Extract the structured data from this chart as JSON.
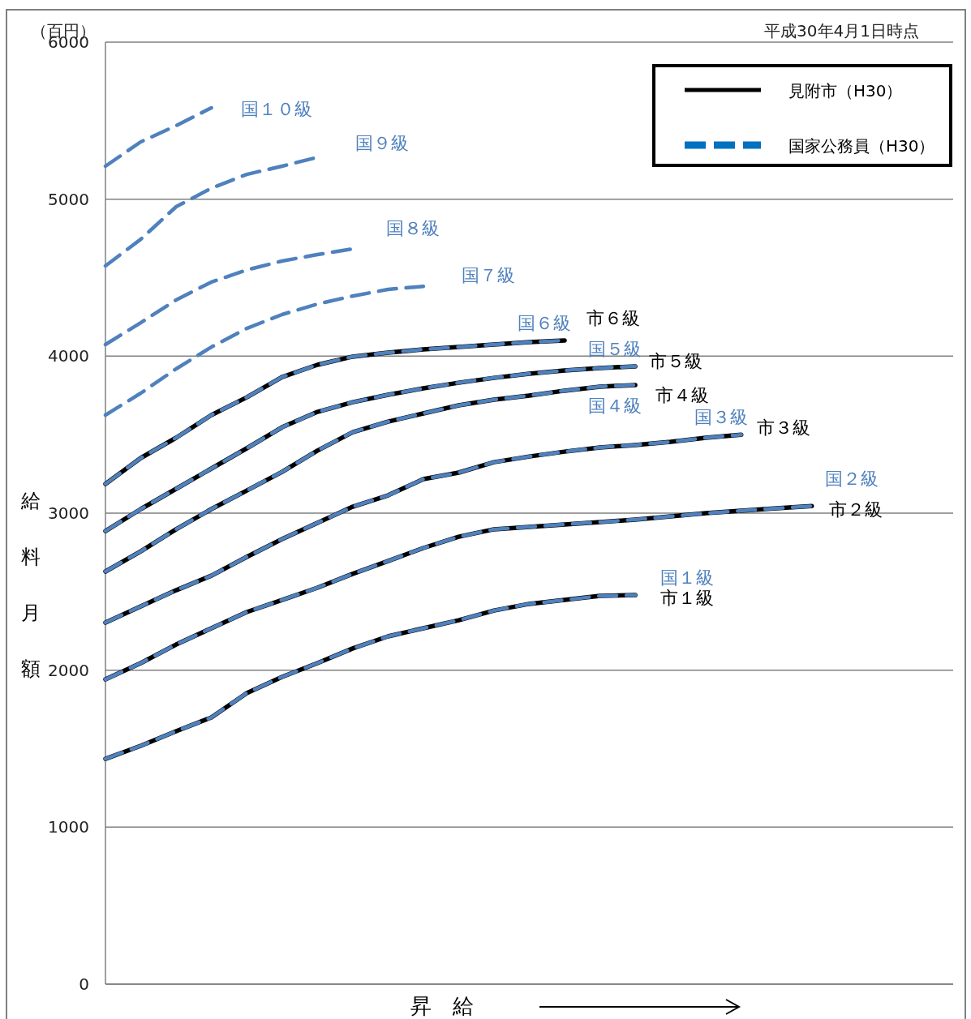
{
  "chart_data": {
    "type": "line",
    "xlabel": "昇　給",
    "ylabel": "給料月額",
    "categories": [
      null,
      null,
      null,
      null,
      null,
      null,
      null,
      null,
      null,
      null,
      null,
      null,
      null,
      null,
      null,
      null,
      null,
      null,
      null,
      null,
      null,
      null,
      null,
      null,
      null
    ],
    "ylim": [
      0,
      6000
    ],
    "yticks": [
      0,
      1000,
      2000,
      3000,
      4000,
      5000,
      6000
    ],
    "grid": "y",
    "legend": "top right",
    "series": [
      {
        "name": "市１級",
        "color": "#000000",
        "line_style": "solid",
        "values": [
          1435,
          1518,
          1611,
          1699,
          1854,
          1957,
          2045,
          2138,
          2215,
          2267,
          2318,
          2380,
          2422,
          2447,
          2473,
          2478,
          null,
          null,
          null,
          null,
          null,
          null,
          null,
          null,
          null
        ]
      },
      {
        "name": "市２級",
        "color": "#000000",
        "line_style": "solid",
        "values": [
          1941,
          2045,
          2163,
          2267,
          2370,
          2447,
          2525,
          2613,
          2695,
          2778,
          2850,
          2897,
          2912,
          2928,
          2943,
          2959,
          2979,
          3000,
          3015,
          3031,
          3045,
          null,
          null,
          null,
          null
        ]
      },
      {
        "name": "市３級",
        "color": "#000000",
        "line_style": "solid",
        "values": [
          2303,
          2406,
          2509,
          2602,
          2721,
          2835,
          2938,
          3041,
          3113,
          3217,
          3258,
          3325,
          3361,
          3392,
          3418,
          3434,
          3454,
          3480,
          3500,
          null,
          null,
          null,
          null,
          null,
          null
        ]
      },
      {
        "name": "市４級",
        "color": "#000000",
        "line_style": "solid",
        "values": [
          2628,
          2757,
          2897,
          3026,
          3144,
          3263,
          3398,
          3516,
          3583,
          3635,
          3687,
          3723,
          3749,
          3780,
          3806,
          3816,
          null,
          null,
          null,
          null,
          null,
          null,
          null,
          null,
          null
        ]
      },
      {
        "name": "市５級",
        "color": "#000000",
        "line_style": "solid",
        "values": [
          2886,
          3026,
          3155,
          3284,
          3413,
          3547,
          3645,
          3707,
          3754,
          3795,
          3831,
          3862,
          3888,
          3909,
          3924,
          3935,
          null,
          null,
          null,
          null,
          null,
          null,
          null,
          null,
          null
        ]
      },
      {
        "name": "市６級",
        "color": "#000000",
        "line_style": "solid",
        "values": [
          3186,
          3351,
          3480,
          3625,
          3738,
          3867,
          3945,
          3997,
          4022,
          4043,
          4058,
          4074,
          4089,
          4100,
          null,
          null,
          null,
          null,
          null,
          null,
          null,
          null,
          null,
          null,
          null
        ]
      },
      {
        "name": "国１級",
        "color": "#4f81bd",
        "line_style": "dashed",
        "values": [
          1435,
          1518,
          1611,
          1699,
          1854,
          1957,
          2045,
          2138,
          2215,
          2267,
          2318,
          2380,
          2422,
          2447,
          2473,
          2478,
          null,
          null,
          null,
          null,
          null,
          null,
          null,
          null,
          null
        ]
      },
      {
        "name": "国２級",
        "color": "#4f81bd",
        "line_style": "dashed",
        "values": [
          1941,
          2045,
          2163,
          2267,
          2370,
          2447,
          2525,
          2613,
          2695,
          2778,
          2850,
          2897,
          2912,
          2928,
          2943,
          2959,
          2979,
          3000,
          3015,
          3031,
          3045,
          null,
          null,
          null,
          null
        ]
      },
      {
        "name": "国３級",
        "color": "#4f81bd",
        "line_style": "dashed",
        "values": [
          2303,
          2406,
          2509,
          2602,
          2721,
          2835,
          2938,
          3041,
          3113,
          3217,
          3258,
          3325,
          3361,
          3392,
          3418,
          3434,
          3454,
          3480,
          3500,
          null,
          null,
          null,
          null,
          null,
          null
        ]
      },
      {
        "name": "国４級",
        "color": "#4f81bd",
        "line_style": "dashed",
        "values": [
          2628,
          2757,
          2897,
          3026,
          3144,
          3263,
          3398,
          3516,
          3583,
          3635,
          3687,
          3723,
          3749,
          3780,
          3806,
          3816,
          null,
          null,
          null,
          null,
          null,
          null,
          null,
          null,
          null
        ]
      },
      {
        "name": "国５級",
        "color": "#4f81bd",
        "line_style": "dashed",
        "values": [
          2886,
          3026,
          3155,
          3284,
          3413,
          3547,
          3645,
          3707,
          3754,
          3795,
          3831,
          3862,
          3888,
          3909,
          3924,
          3935,
          null,
          null,
          null,
          null,
          null,
          null,
          null,
          null,
          null
        ]
      },
      {
        "name": "国６級",
        "color": "#4f81bd",
        "line_style": "dashed",
        "values": [
          3186,
          3351,
          3480,
          3625,
          3738,
          3867,
          3945,
          3997,
          4022,
          4043,
          4058,
          4074,
          4089,
          4100,
          null,
          null,
          null,
          null,
          null,
          null,
          null,
          null,
          null,
          null,
          null
        ]
      },
      {
        "name": "国７級",
        "color": "#4f81bd",
        "line_style": "dashed",
        "values": [
          3625,
          3764,
          3919,
          4058,
          4177,
          4265,
          4332,
          4383,
          4425,
          4445,
          null,
          null,
          null,
          null,
          null,
          null,
          null,
          null,
          null,
          null,
          null,
          null,
          null,
          null,
          null
        ]
      },
      {
        "name": "国８級",
        "color": "#4f81bd",
        "line_style": "dashed",
        "values": [
          4074,
          4213,
          4358,
          4472,
          4549,
          4606,
          4647,
          4683,
          null,
          null,
          null,
          null,
          null,
          null,
          null,
          null,
          null,
          null,
          null,
          null,
          null,
          null,
          null,
          null,
          null
        ]
      },
      {
        "name": "国９級",
        "color": "#4f81bd",
        "line_style": "dashed",
        "values": [
          4575,
          4745,
          4952,
          5070,
          5158,
          5210,
          5267,
          null,
          null,
          null,
          null,
          null,
          null,
          null,
          null,
          null,
          null,
          null,
          null,
          null,
          null,
          null,
          null,
          null,
          null
        ]
      },
      {
        "name": "国１０級",
        "color": "#4f81bd",
        "line_style": "dashed",
        "values": [
          5210,
          5365,
          5468,
          5582,
          null,
          null,
          null,
          null,
          null,
          null,
          null,
          null,
          null,
          null,
          null,
          null,
          null,
          null,
          null,
          null,
          null,
          null,
          null,
          null,
          null
        ]
      }
    ],
    "annotations": [
      "平成30年4月1日時点",
      "（百円）",
      "見附市（H30）",
      "国家公務員（H30）"
    ]
  }
}
